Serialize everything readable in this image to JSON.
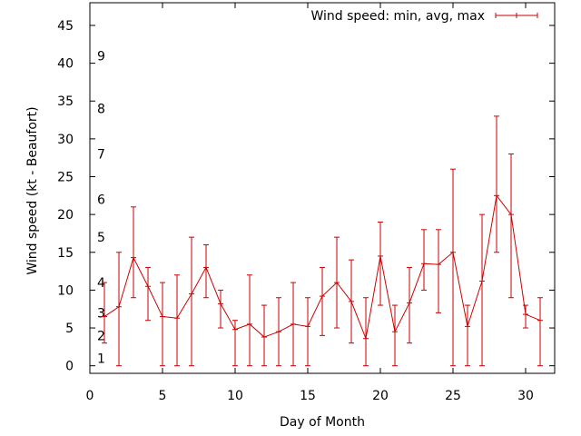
{
  "chart_data": {
    "type": "line",
    "title": "",
    "xlabel": "Day of Month",
    "ylabel": "Wind speed (kt - Beaufort)",
    "xlim": [
      0,
      32
    ],
    "ylim": [
      -1,
      48
    ],
    "x_ticks": [
      0,
      5,
      10,
      15,
      20,
      25,
      30
    ],
    "y_ticks": [
      0,
      5,
      10,
      15,
      20,
      25,
      30,
      35,
      40,
      45
    ],
    "grid": false,
    "legend_position": "top-right",
    "beaufort_labels": [
      {
        "label": "1",
        "y": 1.0
      },
      {
        "label": "2",
        "y": 4.0
      },
      {
        "label": "3",
        "y": 7.0
      },
      {
        "label": "4",
        "y": 11.0
      },
      {
        "label": "5",
        "y": 17.0
      },
      {
        "label": "6",
        "y": 22.0
      },
      {
        "label": "7",
        "y": 28.0
      },
      {
        "label": "8",
        "y": 34.0
      },
      {
        "label": "9",
        "y": 41.0
      }
    ],
    "series": [
      {
        "name": "Wind speed: min, avg, max",
        "color": "#cc0000",
        "x": [
          1,
          2,
          3,
          4,
          5,
          6,
          7,
          8,
          9,
          10,
          11,
          12,
          13,
          14,
          15,
          16,
          17,
          18,
          19,
          20,
          21,
          22,
          23,
          24,
          25,
          26,
          27,
          28,
          29,
          30,
          31
        ],
        "avg": [
          6.5,
          7.8,
          14.3,
          10.5,
          6.5,
          6.3,
          9.5,
          13.0,
          8.2,
          4.8,
          5.5,
          3.8,
          4.5,
          5.5,
          5.2,
          9.2,
          11.0,
          8.5,
          3.6,
          14.5,
          4.5,
          8.3,
          13.5,
          13.4,
          15.0,
          5.2,
          11.2,
          22.5,
          20.0,
          6.8,
          6.0
        ],
        "min": [
          3,
          0,
          9,
          6,
          0,
          0,
          0,
          9,
          5,
          0,
          0,
          0,
          0,
          0,
          0,
          4,
          5,
          3,
          0,
          8,
          0,
          3,
          10,
          7,
          0,
          0,
          0,
          15,
          9,
          5,
          0
        ],
        "max": [
          11,
          15,
          21,
          13,
          11,
          12,
          17,
          16,
          10,
          6,
          12,
          8,
          9,
          11,
          9,
          13,
          17,
          14,
          9,
          19,
          8,
          13,
          18,
          18,
          26,
          8,
          20,
          33,
          28,
          8,
          9
        ]
      }
    ]
  }
}
